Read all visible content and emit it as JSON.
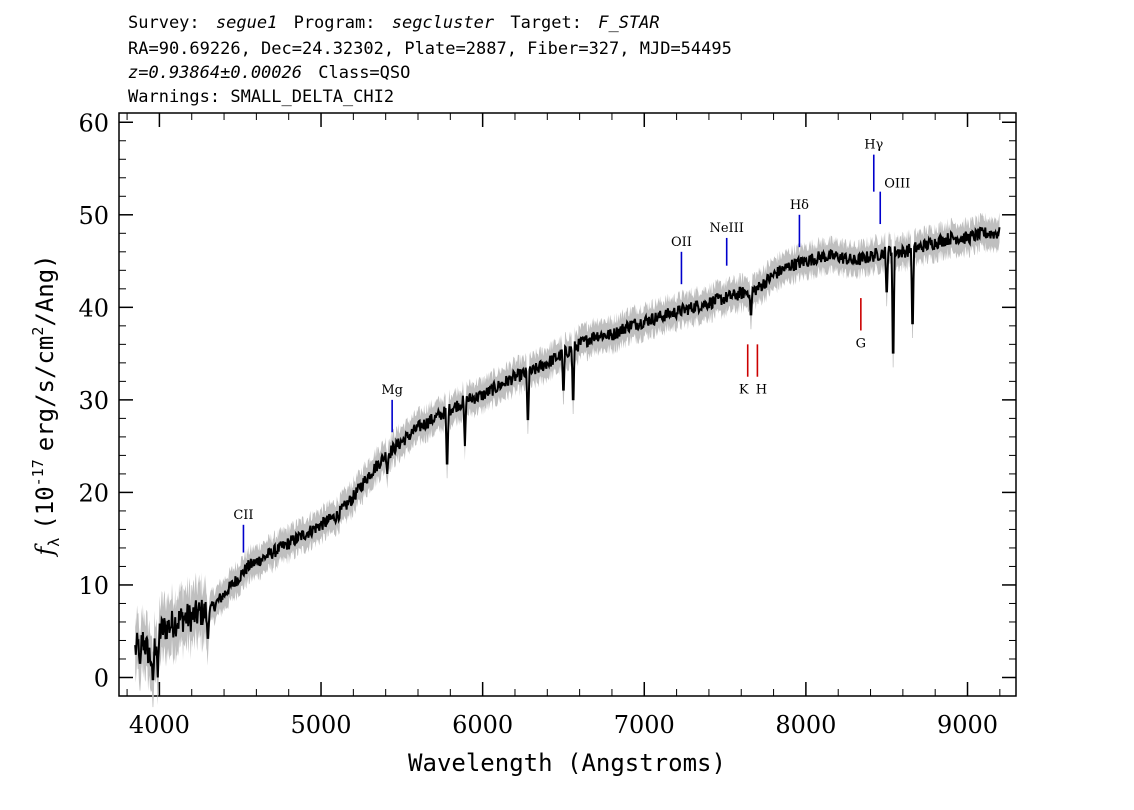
{
  "header": {
    "line1": {
      "survey_label": "Survey:",
      "survey": "segue1",
      "program_label": "Program:",
      "program": "segcluster",
      "target_label": "Target:",
      "target": "F_STAR"
    },
    "line2": "RA=90.69226, Dec=24.32302, Plate=2887, Fiber=327, MJD=54495",
    "line3": {
      "redshift": "z=0.93864±0.00026",
      "class": "Class=QSO"
    },
    "line4": "Warnings: SMALL_DELTA_CHI2"
  },
  "chart_data": {
    "type": "line",
    "xlabel": "Wavelength (Angstroms)",
    "ylabel": {
      "symbol": "f",
      "sub": "λ",
      "pre": "(10",
      "exp": "-17",
      "mid": "erg/s/cm",
      "exp2": "2",
      "post": "/Ang)"
    },
    "xlim": [
      3750,
      9300
    ],
    "ylim": [
      -2,
      61
    ],
    "xticks": [
      4000,
      5000,
      6000,
      7000,
      8000,
      9000
    ],
    "yticks": [
      0,
      10,
      20,
      30,
      40,
      50,
      60
    ],
    "xtick_labels": [
      "4000",
      "5000",
      "6000",
      "7000",
      "8000",
      "9000"
    ],
    "ytick_labels": [
      "0",
      "10",
      "20",
      "30",
      "40",
      "50",
      "60"
    ],
    "grid": false,
    "colors": {
      "spectrum": "#000000",
      "error_band": "#bfbfbf",
      "emission": "#0000cc",
      "absorption": "#cc0000"
    },
    "spectrum": {
      "x": [
        3850,
        3900,
        3950,
        4000,
        4050,
        4100,
        4150,
        4200,
        4250,
        4300,
        4350,
        4400,
        4450,
        4500,
        4550,
        4600,
        4650,
        4700,
        4750,
        4800,
        4850,
        4900,
        4950,
        5000,
        5100,
        5200,
        5300,
        5400,
        5500,
        5600,
        5700,
        5800,
        5900,
        6000,
        6100,
        6200,
        6300,
        6400,
        6500,
        6600,
        6700,
        6800,
        6900,
        7000,
        7100,
        7200,
        7300,
        7400,
        7500,
        7600,
        7700,
        7800,
        7900,
        8000,
        8100,
        8200,
        8300,
        8400,
        8500,
        8600,
        8700,
        8800,
        8900,
        9000,
        9100,
        9200
      ],
      "y": [
        3,
        4,
        2,
        5,
        5.5,
        6,
        6.5,
        6.5,
        7,
        7,
        8,
        9,
        10,
        11,
        12,
        12.5,
        13,
        13.5,
        14,
        14.5,
        15,
        15.5,
        16,
        16.5,
        17.5,
        19.5,
        22,
        24,
        25.5,
        27,
        28,
        29,
        30,
        30.5,
        31.5,
        32.5,
        33,
        34,
        35,
        36,
        37,
        37,
        38,
        38.5,
        39,
        39.5,
        40,
        40.5,
        41,
        41.5,
        42,
        43.5,
        44.5,
        45,
        45.5,
        45.5,
        45,
        45.5,
        46,
        46,
        46.5,
        47,
        47.5,
        47.5,
        48,
        48
      ]
    },
    "dips": [
      {
        "x": 3880,
        "y": 1
      },
      {
        "x": 3960,
        "y": -1
      },
      {
        "x": 3990,
        "y": 0
      },
      {
        "x": 4300,
        "y": 3.5
      },
      {
        "x": 5410,
        "y": 22
      },
      {
        "x": 5780,
        "y": 21.5
      },
      {
        "x": 5890,
        "y": 25
      },
      {
        "x": 6280,
        "y": 26.5
      },
      {
        "x": 6500,
        "y": 30
      },
      {
        "x": 6560,
        "y": 28.5
      },
      {
        "x": 7660,
        "y": 38.5
      },
      {
        "x": 8500,
        "y": 40.5
      },
      {
        "x": 8540,
        "y": 32
      },
      {
        "x": 8660,
        "y": 36
      }
    ],
    "lines": [
      {
        "name": "CII",
        "x": 4520,
        "y1": 13.5,
        "y2": 16.5,
        "type": "emission",
        "label_pos": "above"
      },
      {
        "name": "Mg",
        "x": 5440,
        "y1": 26.5,
        "y2": 30,
        "type": "emission",
        "label_pos": "above"
      },
      {
        "name": "OII",
        "x": 7230,
        "y1": 42.5,
        "y2": 46,
        "type": "emission",
        "label_pos": "above"
      },
      {
        "name": "NeIII",
        "x": 7510,
        "y1": 44.5,
        "y2": 47.5,
        "type": "emission",
        "label_pos": "above"
      },
      {
        "name": "Hδ",
        "x": 7960,
        "y1": 46.5,
        "y2": 50,
        "type": "emission",
        "label_pos": "above"
      },
      {
        "name": "Hγ",
        "x": 8420,
        "y1": 52.5,
        "y2": 56.5,
        "type": "emission",
        "label_pos": "above"
      },
      {
        "name": "OIII",
        "x": 8460,
        "y1": 49,
        "y2": 52.5,
        "type": "emission",
        "label_pos": "right"
      },
      {
        "name": "K",
        "x": 7640,
        "y1": 32.5,
        "y2": 36,
        "type": "absorption",
        "label_pos": "below"
      },
      {
        "name": "H",
        "x": 7700,
        "y1": 32.5,
        "y2": 36,
        "type": "absorption",
        "label_pos": "below"
      },
      {
        "name": "G",
        "x": 8340,
        "y1": 37.5,
        "y2": 41,
        "type": "absorption",
        "label_pos": "below"
      }
    ]
  }
}
